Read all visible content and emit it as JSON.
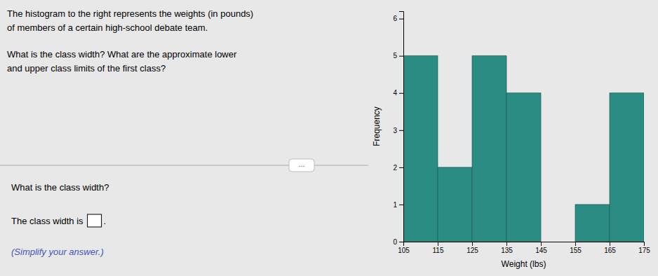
{
  "chart_data": {
    "type": "histogram",
    "bins": [
      105,
      115,
      125,
      135,
      145,
      155,
      165,
      175
    ],
    "values": [
      5,
      2,
      5,
      4,
      0,
      1,
      4
    ],
    "color": "#2a8c82",
    "xlabel": "Weight (lbs)",
    "ylabel": "Frequency",
    "xlim": [
      105,
      175
    ],
    "ylim": [
      0,
      6.2
    ],
    "xticks": [
      105,
      115,
      125,
      135,
      145,
      155,
      165,
      175
    ],
    "yticks": [
      0,
      1,
      2,
      3,
      4,
      5,
      6
    ],
    "annotations": [
      "The histogram to the right represents the weights (in pounds)",
      "of members of a certain high-school debate team.",
      "What is the class width? What are the approximate lower",
      "and upper class limits of the first class?",
      "...",
      "What is the class width?",
      "The class width is",
      ".",
      "(Simplify your answer.)"
    ]
  }
}
